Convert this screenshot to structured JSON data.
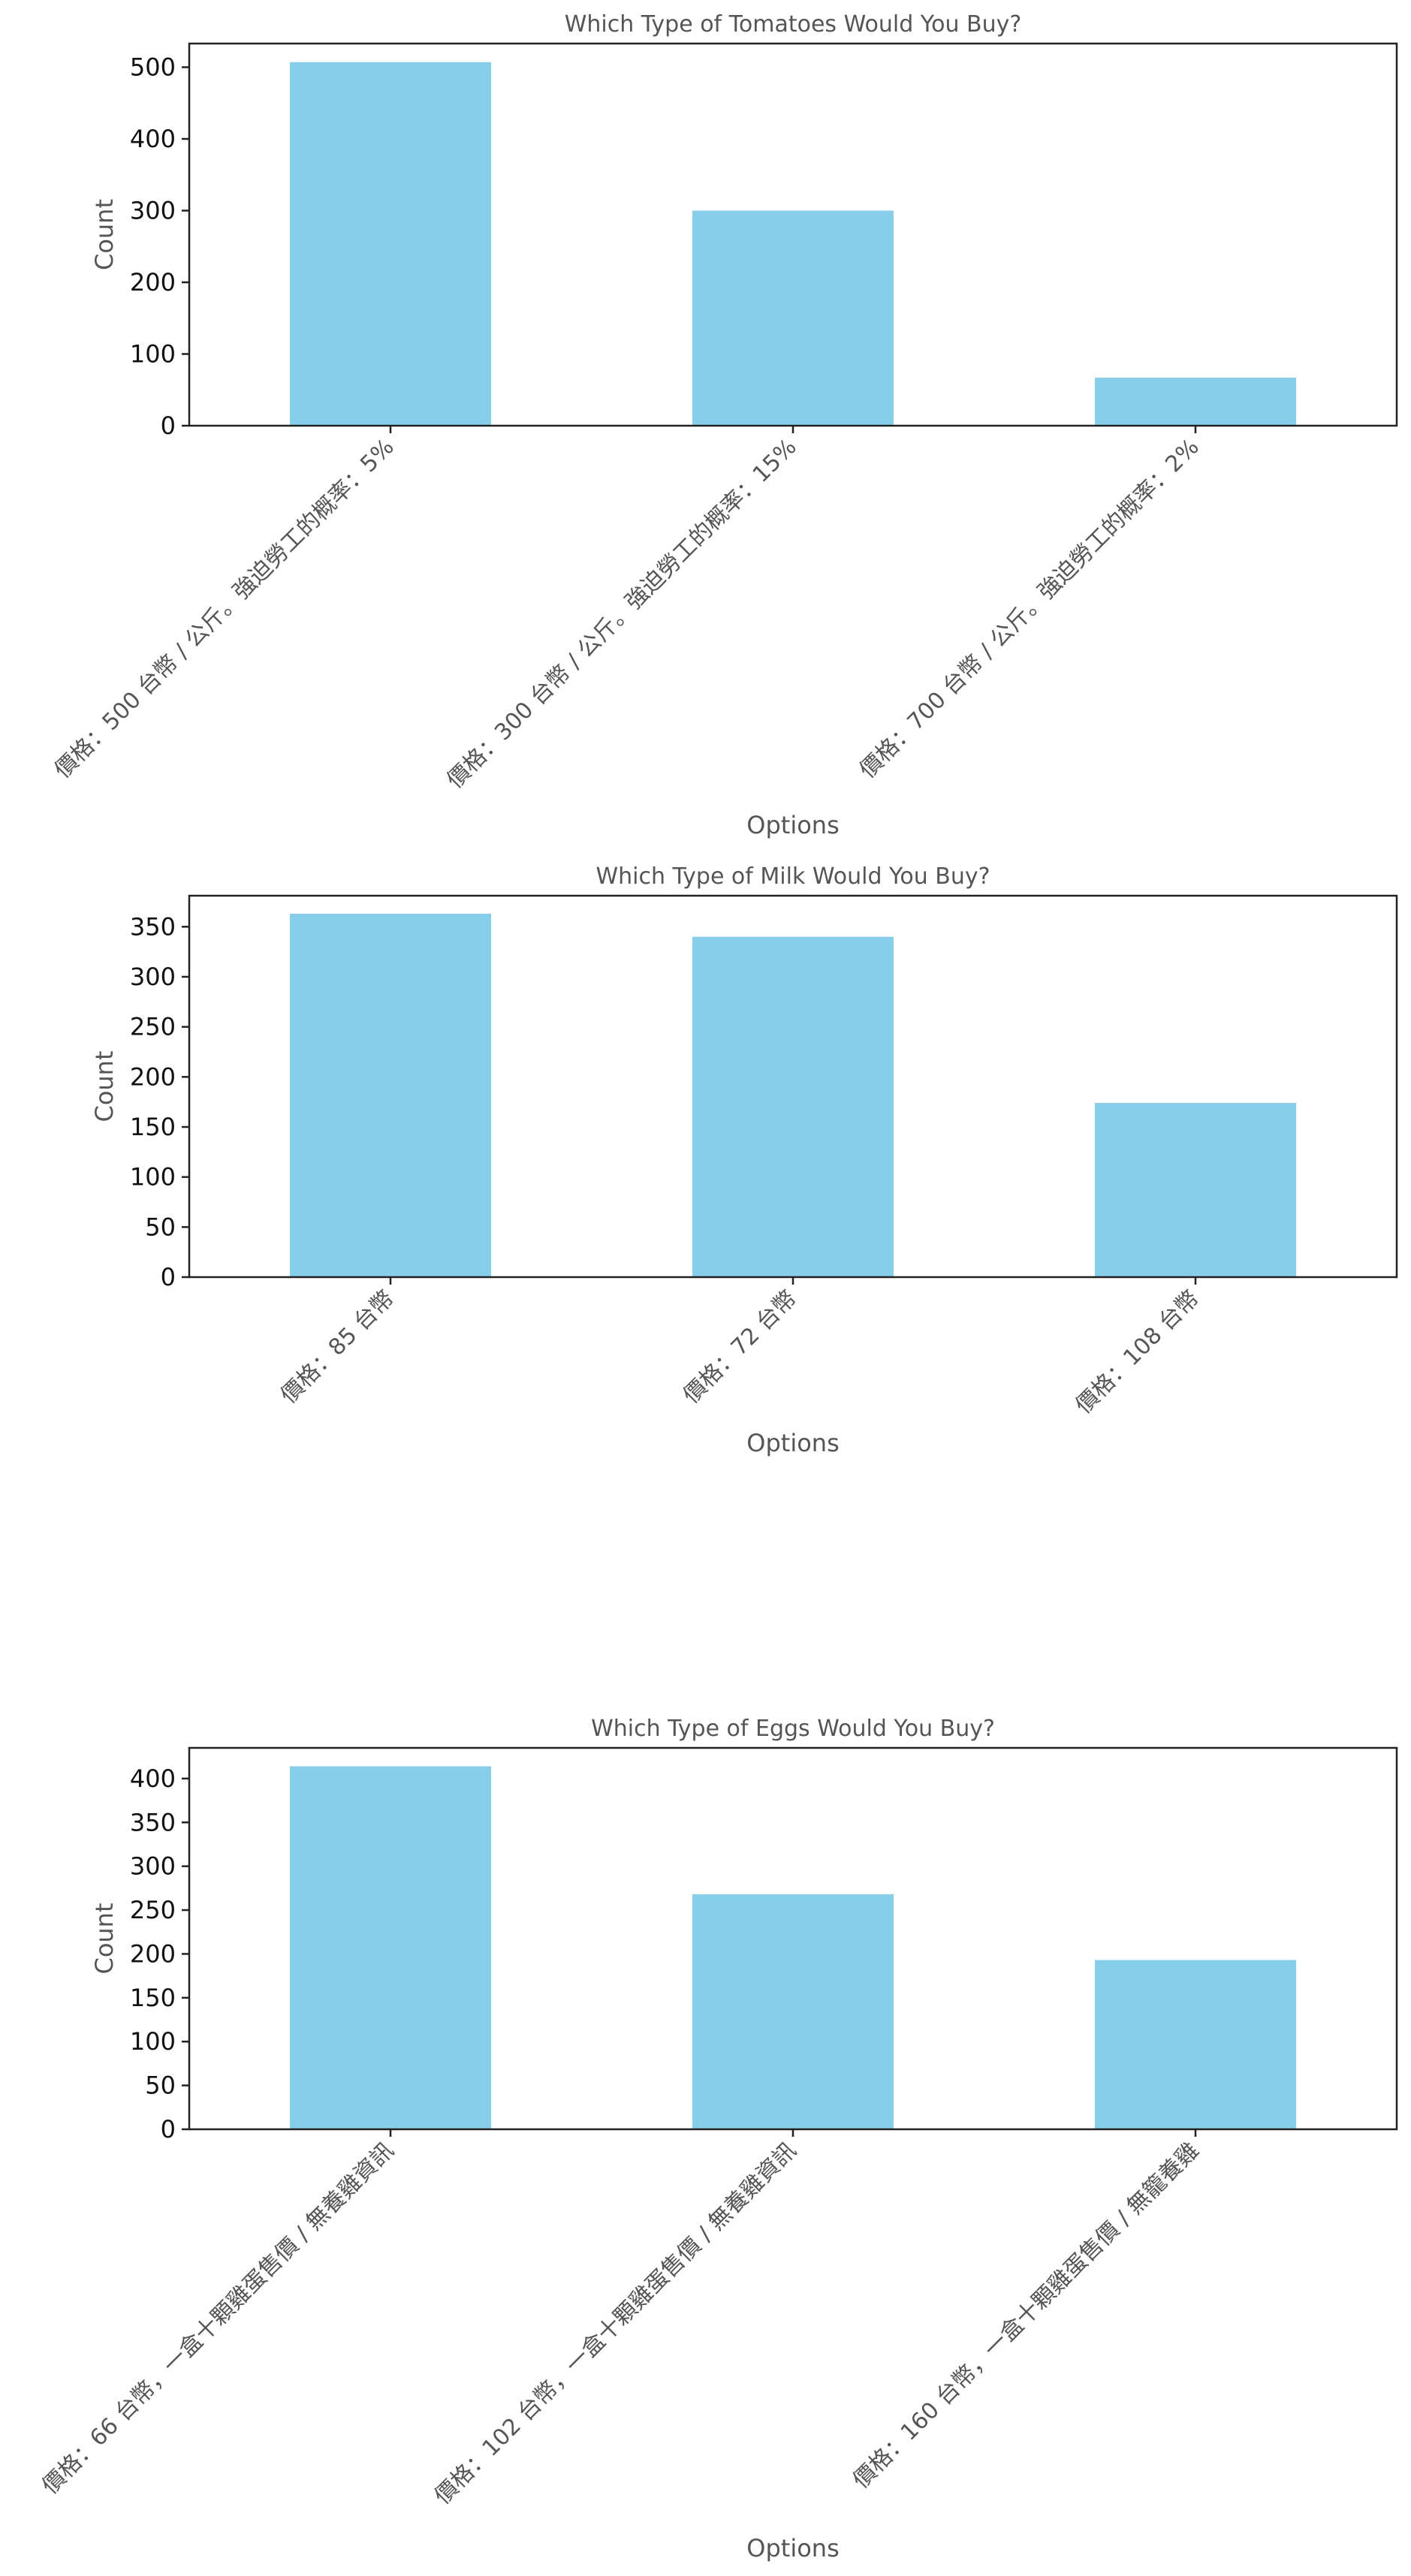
{
  "colors": {
    "bar": "#87CEEB",
    "axis": "#222222",
    "label_text": "#555555",
    "tick_text": "#111111",
    "background": "#ffffff"
  },
  "chart_data": [
    {
      "type": "bar",
      "title": "Which Type of Tomatoes Would You Buy?",
      "xlabel": "Options",
      "ylabel": "Count",
      "categories": [
        "價格：500 台幣 / 公斤。強迫勞工的概率：5%",
        "價格：300 台幣 / 公斤。強迫勞工的概率：15%",
        "價格：700 台幣 / 公斤。強迫勞工的概率：2%"
      ],
      "values": [
        507,
        300,
        67
      ],
      "ylim": [
        0,
        533
      ],
      "yticks": [
        0,
        100,
        200,
        300,
        400,
        500
      ],
      "grid": false,
      "legend": "none"
    },
    {
      "type": "bar",
      "title": "Which Type of Milk Would You Buy?",
      "xlabel": "Options",
      "ylabel": "Count",
      "categories": [
        "價格：85 台幣",
        "價格：72 台幣",
        "價格：108 台幣"
      ],
      "values": [
        363,
        340,
        174
      ],
      "ylim": [
        0,
        381
      ],
      "yticks": [
        0,
        50,
        100,
        150,
        200,
        250,
        300,
        350
      ],
      "grid": false,
      "legend": "none"
    },
    {
      "type": "bar",
      "title": "Which Type of Eggs Would You Buy?",
      "xlabel": "Options",
      "ylabel": "Count",
      "categories": [
        "價格：66 台幣，一盒十顆雞蛋售價 / 無養雞資訊",
        "價格：102 台幣，一盒十顆雞蛋售價 / 無養雞資訊",
        "價格：160 台幣，一盒十顆雞蛋售價 / 無籠養雞"
      ],
      "values": [
        414,
        268,
        193
      ],
      "ylim": [
        0,
        435
      ],
      "yticks": [
        0,
        50,
        100,
        150,
        200,
        250,
        300,
        350,
        400
      ],
      "grid": false,
      "legend": "none"
    }
  ]
}
